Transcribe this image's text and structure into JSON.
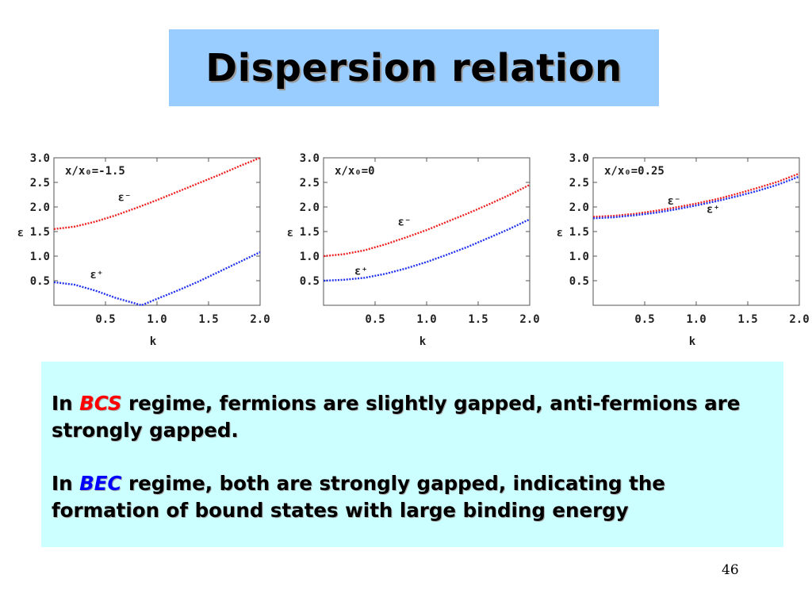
{
  "slide": {
    "title": "Dispersion relation",
    "page_number": "46",
    "paragraph1": {
      "prefix": "In ",
      "highlight": "BCS",
      "rest": " regime, fermions are slightly gapped, anti-fermions are strongly gapped."
    },
    "paragraph2": {
      "prefix": "In ",
      "highlight": "BEC",
      "rest": " regime, both are strongly gapped, indicating the formation of bound states with large binding energy"
    },
    "colors": {
      "title_bg": "#99ccff",
      "text_bg": "#ccffff",
      "bcs": "#ff0000",
      "bec": "#0000ff",
      "eps_minus": "#ee2222",
      "eps_plus": "#2233ee"
    }
  },
  "chart_data": [
    {
      "type": "line",
      "annotation": "x/x₀=-1.5",
      "xlabel": "k",
      "ylabel": "ε",
      "xlim": [
        0,
        2
      ],
      "ylim": [
        0,
        3
      ],
      "xticks": [
        "0.5",
        "1.0",
        "1.5",
        "2.0"
      ],
      "yticks": [
        "0.5",
        "1.0",
        "1.5",
        "2.0",
        "2.5",
        "3.0"
      ],
      "series": [
        {
          "name": "ε⁻",
          "x": [
            0,
            0.2,
            0.4,
            0.6,
            0.8,
            1.0,
            1.2,
            1.4,
            1.6,
            1.8,
            2.0
          ],
          "values": [
            1.55,
            1.6,
            1.7,
            1.83,
            1.98,
            2.14,
            2.31,
            2.48,
            2.65,
            2.83,
            3.0
          ]
        },
        {
          "name": "ε⁺",
          "x": [
            0,
            0.2,
            0.4,
            0.6,
            0.8,
            0.85,
            1.0,
            1.2,
            1.4,
            1.6,
            1.8,
            2.0
          ],
          "values": [
            0.47,
            0.42,
            0.3,
            0.15,
            0.03,
            0.0,
            0.13,
            0.3,
            0.48,
            0.68,
            0.88,
            1.08
          ]
        }
      ]
    },
    {
      "type": "line",
      "annotation": "x/x₀=0",
      "xlabel": "k",
      "ylabel": "ε",
      "xlim": [
        0,
        2
      ],
      "ylim": [
        0,
        3
      ],
      "xticks": [
        "0.5",
        "1.0",
        "1.5",
        "2.0"
      ],
      "yticks": [
        "0.5",
        "1.0",
        "1.5",
        "2.0",
        "2.5",
        "3.0"
      ],
      "series": [
        {
          "name": "ε⁻",
          "x": [
            0,
            0.2,
            0.4,
            0.6,
            0.8,
            1.0,
            1.2,
            1.4,
            1.6,
            1.8,
            2.0
          ],
          "values": [
            1.0,
            1.04,
            1.12,
            1.24,
            1.38,
            1.53,
            1.7,
            1.87,
            2.05,
            2.24,
            2.45
          ]
        },
        {
          "name": "ε⁺",
          "x": [
            0,
            0.2,
            0.4,
            0.6,
            0.8,
            1.0,
            1.2,
            1.4,
            1.6,
            1.8,
            2.0
          ],
          "values": [
            0.5,
            0.52,
            0.56,
            0.64,
            0.75,
            0.88,
            1.03,
            1.19,
            1.37,
            1.55,
            1.75
          ]
        }
      ]
    },
    {
      "type": "line",
      "annotation": "x/x₀=0.25",
      "xlabel": "k",
      "ylabel": "ε",
      "xlim": [
        0,
        2
      ],
      "ylim": [
        0,
        3
      ],
      "xticks": [
        "0.5",
        "1.0",
        "1.5",
        "2.0"
      ],
      "yticks": [
        "0.5",
        "1.0",
        "1.5",
        "2.0",
        "2.5",
        "3.0"
      ],
      "series": [
        {
          "name": "ε⁻",
          "x": [
            0,
            0.2,
            0.4,
            0.6,
            0.8,
            1.0,
            1.2,
            1.4,
            1.6,
            1.8,
            2.0
          ],
          "values": [
            1.8,
            1.82,
            1.86,
            1.92,
            1.99,
            2.07,
            2.16,
            2.27,
            2.39,
            2.52,
            2.68
          ]
        },
        {
          "name": "ε⁺",
          "x": [
            0,
            0.2,
            0.4,
            0.6,
            0.8,
            1.0,
            1.2,
            1.4,
            1.6,
            1.8,
            2.0
          ],
          "values": [
            1.77,
            1.79,
            1.83,
            1.88,
            1.95,
            2.03,
            2.12,
            2.22,
            2.33,
            2.46,
            2.62
          ]
        }
      ]
    }
  ]
}
